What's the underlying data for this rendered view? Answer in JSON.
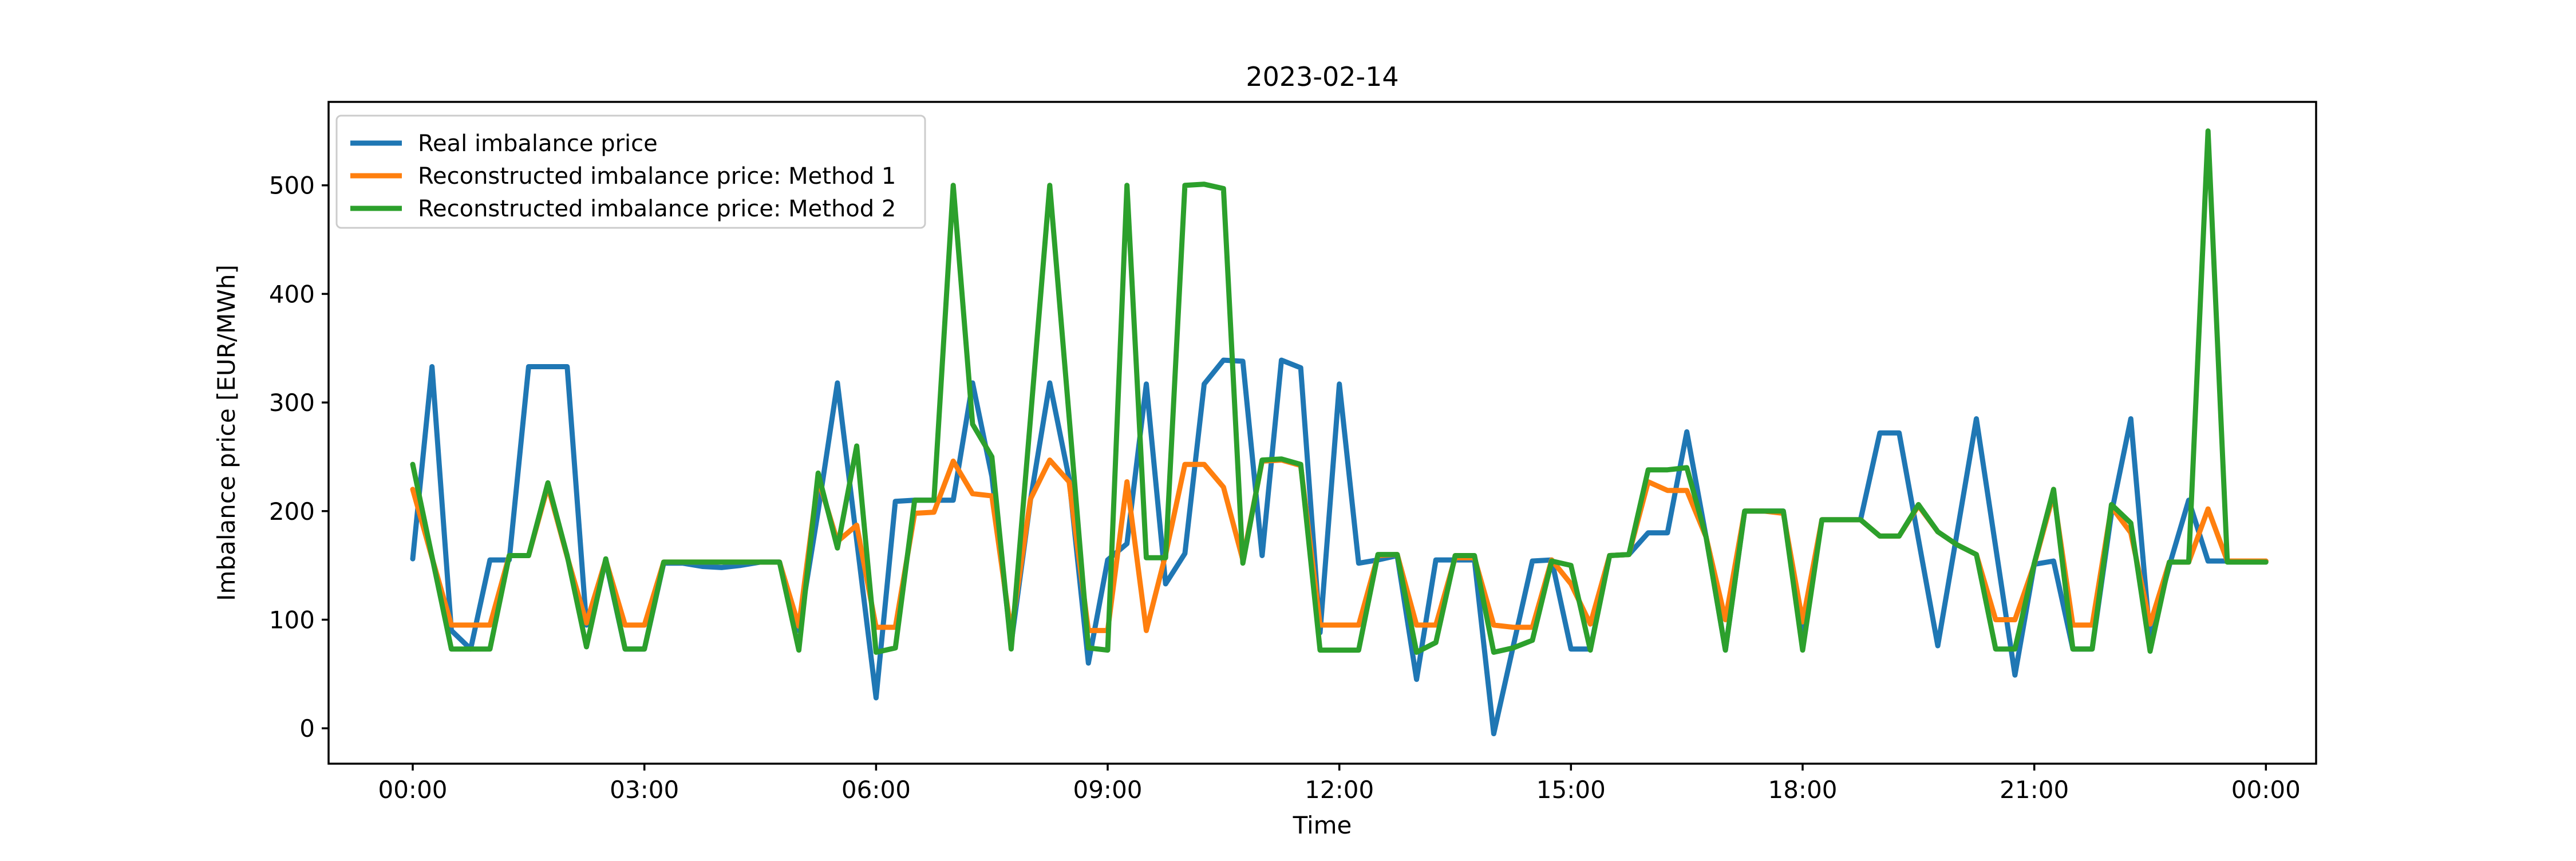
{
  "figure": {
    "background": "#ffffff"
  },
  "chart_data": {
    "type": "line",
    "title": "2023-02-14",
    "xlabel": "Time",
    "ylabel": "Imbalance price [EUR/MWh]",
    "legend_position": "upper left",
    "grid": false,
    "x_unit": "time of day, 15-minute intervals",
    "x_tick_labels": [
      "00:00",
      "03:00",
      "06:00",
      "09:00",
      "12:00",
      "15:00",
      "18:00",
      "21:00",
      "00:00"
    ],
    "x_tick_hours": [
      0,
      3,
      6,
      9,
      12,
      15,
      18,
      21,
      24
    ],
    "y_ticks": [
      0,
      100,
      200,
      300,
      400,
      500
    ],
    "ylim": [
      -32.6,
      576.8
    ],
    "xlim_hours": [
      -1.09,
      24.65
    ],
    "x_hours": [
      0,
      0.25,
      0.5,
      0.75,
      1,
      1.25,
      1.5,
      1.75,
      2,
      2.25,
      2.5,
      2.75,
      3,
      3.25,
      3.5,
      3.75,
      4,
      4.25,
      4.5,
      4.75,
      5,
      5.25,
      5.5,
      5.75,
      6,
      6.25,
      6.5,
      6.75,
      7,
      7.25,
      7.5,
      7.75,
      8,
      8.25,
      8.5,
      8.75,
      9,
      9.25,
      9.5,
      9.75,
      10,
      10.25,
      10.5,
      10.75,
      11,
      11.25,
      11.5,
      11.75,
      12,
      12.25,
      12.5,
      12.75,
      13,
      13.25,
      13.5,
      13.75,
      14,
      14.25,
      14.5,
      14.75,
      15,
      15.25,
      15.5,
      15.75,
      16,
      16.25,
      16.5,
      16.75,
      17,
      17.25,
      17.5,
      17.75,
      18,
      18.25,
      18.5,
      18.75,
      19,
      19.25,
      19.5,
      19.75,
      20,
      20.25,
      20.5,
      20.75,
      21,
      21.25,
      21.5,
      21.75,
      22,
      22.25,
      22.5,
      22.75,
      23,
      23.25,
      23.5,
      23.75,
      24
    ],
    "series": [
      {
        "name": "Real imbalance price",
        "color": "#1f77b4",
        "values": [
          156,
          333,
          90,
          73,
          155,
          155,
          333,
          333,
          333,
          95,
          154,
          73,
          73,
          152,
          152,
          149,
          148,
          150,
          153,
          153,
          90,
          200,
          318,
          173,
          28,
          209,
          210,
          210,
          210,
          318,
          232,
          78,
          210,
          318,
          230,
          60,
          155,
          170,
          317,
          133,
          161,
          317,
          339,
          338,
          159,
          339,
          332,
          88,
          317,
          152,
          155,
          159,
          45,
          155,
          155,
          155,
          -5,
          75,
          154,
          155,
          73,
          73,
          159,
          160,
          180,
          180,
          273,
          176,
          72,
          200,
          200,
          200,
          85,
          192,
          192,
          192,
          272,
          272,
          174,
          76,
          180,
          285,
          167,
          49,
          151,
          154,
          73,
          73,
          198,
          285,
          82,
          150,
          210,
          154,
          154,
          154,
          154
        ]
      },
      {
        "name": "Reconstructed imbalance price: Method 1",
        "color": "#ff7f0e",
        "values": [
          220,
          157,
          95,
          95,
          95,
          159,
          159,
          223,
          158,
          97,
          155,
          95,
          95,
          153,
          153,
          153,
          153,
          153,
          153,
          153,
          94,
          230,
          172,
          187,
          93,
          93,
          198,
          199,
          246,
          216,
          214,
          88,
          211,
          247,
          227,
          90,
          90,
          227,
          90,
          160,
          243,
          243,
          222,
          155,
          246,
          247,
          242,
          95,
          95,
          95,
          159,
          160,
          95,
          95,
          157,
          157,
          95,
          93,
          93,
          155,
          133,
          96,
          159,
          160,
          227,
          219,
          219,
          176,
          100,
          200,
          200,
          198,
          98,
          192,
          192,
          192,
          177,
          177,
          205,
          181,
          169,
          160,
          100,
          100,
          151,
          216,
          95,
          95,
          204,
          180,
          96,
          153,
          153,
          202,
          154,
          154,
          154
        ]
      },
      {
        "name": "Reconstructed imbalance price: Method 2",
        "color": "#2ca02c",
        "values": [
          243,
          158,
          73,
          73,
          73,
          159,
          159,
          226,
          159,
          75,
          156,
          73,
          73,
          153,
          153,
          153,
          153,
          153,
          153,
          153,
          72,
          235,
          166,
          260,
          70,
          74,
          210,
          210,
          500,
          280,
          250,
          73,
          285,
          500,
          287,
          74,
          72,
          500,
          157,
          157,
          500,
          501,
          497,
          152,
          247,
          248,
          243,
          72,
          72,
          72,
          160,
          160,
          70,
          79,
          159,
          159,
          70,
          74,
          81,
          154,
          150,
          72,
          159,
          160,
          238,
          238,
          240,
          176,
          72,
          200,
          200,
          200,
          72,
          192,
          192,
          192,
          177,
          177,
          206,
          181,
          169,
          160,
          73,
          73,
          152,
          220,
          73,
          73,
          206,
          189,
          71,
          153,
          153,
          550,
          153,
          153,
          153
        ]
      }
    ]
  }
}
